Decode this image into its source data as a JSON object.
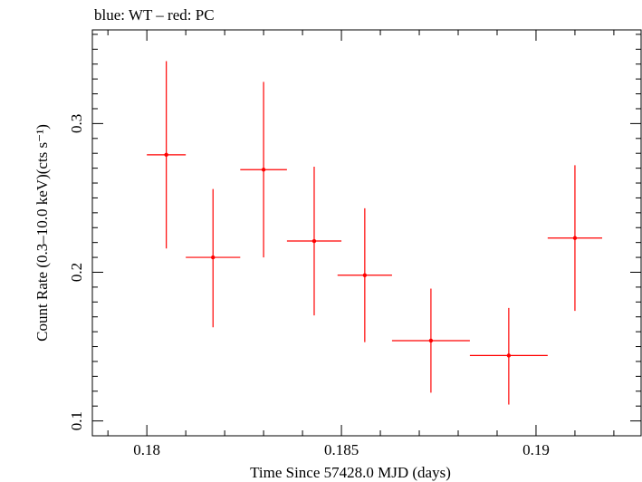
{
  "header": {
    "title": "blue: WT – red: PC"
  },
  "colors": {
    "pc": "#ff0000",
    "axis": "#000000",
    "background": "#ffffff"
  },
  "chart_data": {
    "type": "scatter",
    "title": "blue: WT – red: PC",
    "xlabel": "Time Since 57428.0 MJD (days)",
    "ylabel": "Count Rate (0.3–10.0 keV)(cts s⁻¹)",
    "xlim": [
      0.1786,
      0.1927
    ],
    "ylim": [
      0.09,
      0.363
    ],
    "xticks": [
      0.18,
      0.185,
      0.19
    ],
    "xtick_labels": [
      "0.18",
      "0.185",
      "0.19"
    ],
    "yticks": [
      0.1,
      0.2,
      0.3
    ],
    "ytick_labels": [
      "0.1",
      "0.2",
      "0.3"
    ],
    "grid": false,
    "series": [
      {
        "color": "#ff0000",
        "x": [
          0.1805,
          0.1817,
          0.183,
          0.1843,
          0.1856,
          0.1873,
          0.1893,
          0.191
        ],
        "xerr": [
          0.0005,
          0.0007,
          0.0006,
          0.0007,
          0.0007,
          0.001,
          0.001,
          0.0007
        ],
        "y": [
          0.279,
          0.21,
          0.269,
          0.221,
          0.198,
          0.154,
          0.144,
          0.223
        ],
        "yerr_low": [
          0.063,
          0.047,
          0.059,
          0.05,
          0.045,
          0.035,
          0.033,
          0.049
        ],
        "yerr_high": [
          0.063,
          0.046,
          0.059,
          0.05,
          0.045,
          0.035,
          0.032,
          0.049
        ]
      }
    ]
  }
}
